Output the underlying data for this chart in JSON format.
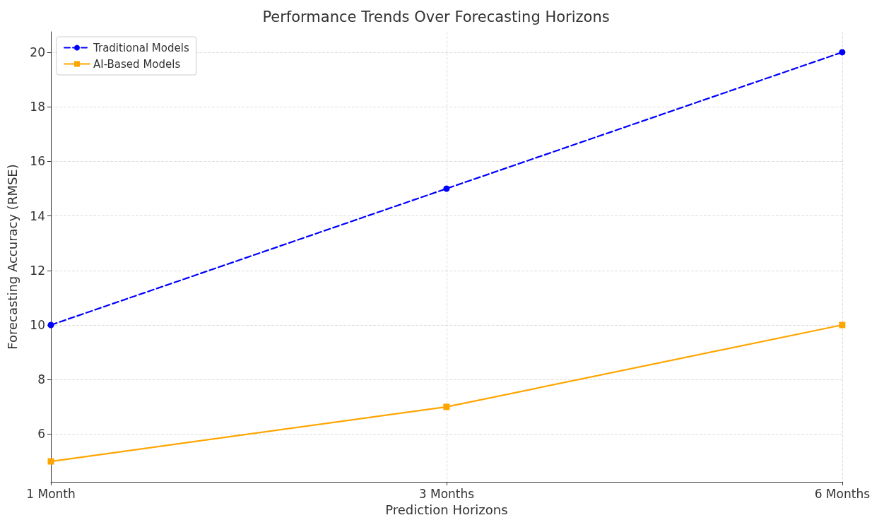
{
  "chart_data": {
    "type": "line",
    "title": "Performance Trends Over Forecasting Horizons",
    "xlabel": "Prediction Horizons",
    "ylabel": "Forecasting Accuracy (RMSE)",
    "categories": [
      "1 Month",
      "3 Months",
      "6 Months"
    ],
    "series": [
      {
        "name": "Traditional Models",
        "color": "#0000ff",
        "values": [
          10,
          15,
          20
        ],
        "marker": "circle",
        "line_style": "dashed"
      },
      {
        "name": "AI-Based Models",
        "color": "#ffa500",
        "values": [
          5,
          7,
          10
        ],
        "marker": "square",
        "line_style": "solid"
      }
    ],
    "ylim": [
      4.25,
      20.75
    ],
    "yticks": [
      6,
      8,
      10,
      12,
      14,
      16,
      18,
      20
    ],
    "grid": true,
    "legend": "top left"
  }
}
